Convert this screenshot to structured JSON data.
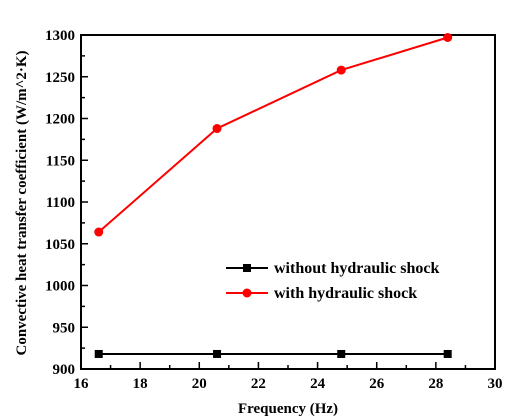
{
  "chart_data": {
    "type": "line",
    "xlabel": "Frequency (Hz)",
    "ylabel": "Convective heat transfer coefficient (W/m^2·K)",
    "xlim": [
      16,
      30
    ],
    "ylim": [
      900,
      1300
    ],
    "xticks": [
      16,
      18,
      20,
      22,
      24,
      26,
      28,
      30
    ],
    "yticks": [
      900,
      950,
      1000,
      1050,
      1100,
      1150,
      1200,
      1250,
      1300
    ],
    "x": [
      16.6,
      20.6,
      24.8,
      28.4
    ],
    "series": [
      {
        "name": "without hydraulic shock",
        "values": [
          918,
          918,
          918,
          918
        ],
        "color": "#000000",
        "marker": "square"
      },
      {
        "name": "with hydraulic shock",
        "values": [
          1064,
          1188,
          1258,
          1297
        ],
        "color": "#ff0000",
        "marker": "circle"
      }
    ],
    "legend_position": "center-right",
    "grid": false
  }
}
